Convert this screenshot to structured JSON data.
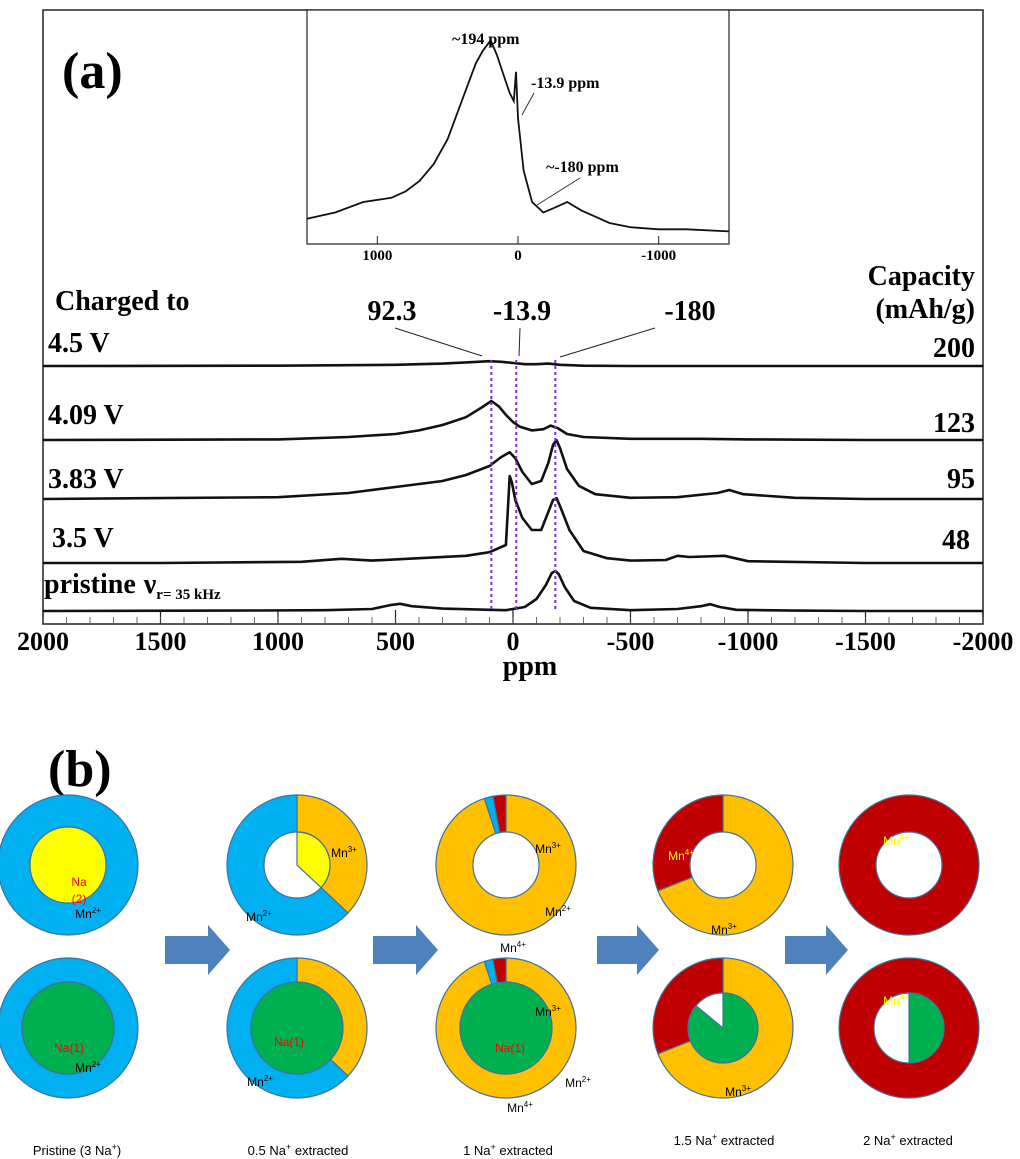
{
  "panel_a": {
    "label": "(a)",
    "charged_to_label": "Charged to",
    "capacity_label_line1": "Capacity",
    "capacity_label_line2": "(mAh/g)",
    "nu_symbol": "ν",
    "nu_subscript": "r= 35 kHz",
    "peak_labels": [
      "92.3",
      "-13.9",
      "-180"
    ],
    "peak_positions_ppm": [
      92.3,
      -13.9,
      -180
    ],
    "xlabel": "ppm"
  },
  "panel_b": {
    "label": "(b)",
    "arrow_color": "#4f81bd",
    "colors": {
      "mn2": "#00b0f0",
      "mn3": "#ffc000",
      "mn4": "#c00000",
      "na1": "#00b050",
      "na2": "#ffff00",
      "na1_text": "#ff0000",
      "mn4_label_on_red": "#ffff00"
    },
    "labels": {
      "mn2": "Mn",
      "mn2_sup": "2+",
      "mn3": "Mn",
      "mn3_sup": "3+",
      "mn4": "Mn",
      "mn4_sup": "4+",
      "na1": "Na(1)",
      "na2_line1": "Na",
      "na2_line2": "(2)"
    },
    "captions": [
      {
        "prefix": "Pristine (3 Na",
        "sup": "+",
        "suffix": ")"
      },
      {
        "prefix": "0.5 Na",
        "sup": "+",
        "suffix": " extracted"
      },
      {
        "prefix": "1 Na",
        "sup": "+",
        "suffix": " extracted"
      },
      {
        "prefix": "1.5 Na",
        "sup": "+",
        "suffix": " extracted"
      },
      {
        "prefix": "2 Na",
        "sup": "+",
        "suffix": " extracted"
      }
    ],
    "states": [
      {
        "top": {
          "mn2": 1.0,
          "mn3": 0.0,
          "mn4": 0.0,
          "inner": "na2",
          "inner_fraction": 1.0
        },
        "bottom": {
          "mn2": 1.0,
          "mn3": 0.0,
          "mn4": 0.0,
          "inner": "na1",
          "inner_fraction": 1.0
        }
      },
      {
        "top": {
          "mn2": 0.63,
          "mn3": 0.37,
          "mn4": 0.0,
          "inner": "na2",
          "inner_fraction": 0.37
        },
        "bottom": {
          "mn2": 0.63,
          "mn3": 0.37,
          "mn4": 0.0,
          "inner": "na1",
          "inner_fraction": 1.0
        }
      },
      {
        "top": {
          "mn2": 0.02,
          "mn3": 0.95,
          "mn4": 0.03,
          "inner": "none",
          "inner_fraction": 0
        },
        "bottom": {
          "mn2": 0.02,
          "mn3": 0.95,
          "mn4": 0.03,
          "inner": "na1",
          "inner_fraction": 1.0
        }
      },
      {
        "top": {
          "mn2": 0.0,
          "mn3": 0.69,
          "mn4": 0.31,
          "inner": "none",
          "inner_fraction": 0
        },
        "bottom": {
          "mn2": 0.0,
          "mn3": 0.69,
          "mn4": 0.31,
          "inner": "na1",
          "inner_fraction": 0.86
        }
      },
      {
        "top": {
          "mn2": 0.0,
          "mn3": 0.0,
          "mn4": 1.0,
          "inner": "none",
          "inner_fraction": 0
        },
        "bottom": {
          "mn2": 0.0,
          "mn3": 0.0,
          "mn4": 1.0,
          "inner": "na1",
          "inner_fraction": 0.5
        }
      }
    ]
  },
  "chart_data": [
    {
      "type": "line",
      "title": "",
      "xlabel": "ppm",
      "ylabel": "",
      "xlim": [
        2000,
        -2000
      ],
      "x_reversed": true,
      "xticks": [
        2000,
        1500,
        1000,
        500,
        0,
        -500,
        -1000,
        -1500,
        -2000
      ],
      "series": [
        {
          "name": "4.5 V",
          "capacity": "200",
          "x": [
            2000,
            1000,
            500,
            300,
            200,
            150,
            100,
            50,
            0,
            -50,
            -100,
            -150,
            -200,
            -300,
            -500,
            -1000,
            -1500,
            -2000
          ],
          "y": [
            0,
            0.005,
            0.02,
            0.04,
            0.06,
            0.07,
            0.08,
            0.07,
            0.05,
            0.03,
            0.03,
            0.04,
            0.02,
            0.005,
            0,
            0,
            0,
            0
          ]
        },
        {
          "name": "4.09 V",
          "capacity": "123",
          "x": [
            2000,
            1000,
            700,
            500,
            400,
            300,
            200,
            130,
            92,
            60,
            30,
            0,
            -30,
            -80,
            -130,
            -160,
            -190,
            -230,
            -300,
            -500,
            -800,
            -1000,
            -1500,
            -2000
          ],
          "y": [
            0,
            0.01,
            0.05,
            0.1,
            0.16,
            0.25,
            0.38,
            0.55,
            0.65,
            0.56,
            0.42,
            0.3,
            0.22,
            0.16,
            0.18,
            0.24,
            0.2,
            0.1,
            0.05,
            0.02,
            0.02,
            0.01,
            0,
            0
          ]
        },
        {
          "name": "3.83 V",
          "capacity": "95",
          "x": [
            2000,
            1000,
            700,
            500,
            300,
            200,
            100,
            50,
            14,
            -10,
            -40,
            -80,
            -120,
            -150,
            -170,
            -185,
            -200,
            -230,
            -280,
            -350,
            -500,
            -700,
            -870,
            -920,
            -980,
            -1200,
            -1500,
            -2000
          ],
          "y": [
            0,
            0.03,
            0.1,
            0.2,
            0.3,
            0.4,
            0.55,
            0.7,
            0.78,
            0.68,
            0.45,
            0.25,
            0.3,
            0.6,
            0.9,
            0.98,
            0.85,
            0.5,
            0.22,
            0.08,
            0.02,
            0.03,
            0.1,
            0.15,
            0.08,
            0.02,
            0,
            0
          ]
        },
        {
          "name": "3.5 V",
          "capacity": "48",
          "x": [
            2000,
            1500,
            900,
            730,
            600,
            400,
            200,
            100,
            30,
            14,
            5,
            -10,
            -40,
            -80,
            -120,
            -150,
            -170,
            -185,
            -200,
            -240,
            -300,
            -400,
            -500,
            -650,
            -700,
            -750,
            -900,
            -1000,
            -1500,
            -2000
          ],
          "y": [
            0,
            0,
            0.02,
            0.07,
            0.04,
            0.08,
            0.12,
            0.18,
            0.3,
            1.45,
            1.35,
            1.05,
            0.75,
            0.55,
            0.55,
            0.85,
            1.05,
            1.08,
            0.95,
            0.55,
            0.2,
            0.08,
            0.04,
            0.05,
            0.12,
            0.1,
            0.12,
            0.03,
            0,
            0
          ]
        },
        {
          "name": "pristine",
          "capacity": "",
          "x": [
            2000,
            1200,
            800,
            600,
            520,
            480,
            430,
            300,
            100,
            30,
            -50,
            -100,
            -140,
            -165,
            -180,
            -195,
            -220,
            -260,
            -330,
            -500,
            -700,
            -800,
            -840,
            -880,
            -950,
            -1200,
            -1500,
            -2000
          ],
          "y": [
            0,
            0.01,
            0.02,
            0.05,
            0.15,
            0.18,
            0.12,
            0.06,
            0.03,
            0.02,
            0.1,
            0.3,
            0.65,
            0.95,
            1.0,
            0.92,
            0.6,
            0.25,
            0.08,
            0.02,
            0.05,
            0.12,
            0.17,
            0.1,
            0.03,
            0.01,
            0,
            0
          ]
        }
      ]
    },
    {
      "type": "line",
      "title": "",
      "xlabel": "",
      "ylabel": "",
      "xlim": [
        1500,
        -1500
      ],
      "x_reversed": true,
      "xticks": [
        1000,
        0,
        -1000
      ],
      "annotations": [
        "~194 ppm",
        "-13.9 ppm",
        "~-180 ppm"
      ],
      "series": [
        {
          "name": "",
          "x": [
            1500,
            1300,
            1100,
            900,
            800,
            700,
            600,
            500,
            400,
            300,
            250,
            194,
            150,
            100,
            60,
            30,
            14,
            0,
            -40,
            -100,
            -180,
            -250,
            -350,
            -450,
            -550,
            -650,
            -800,
            -1000,
            -1200,
            -1500
          ],
          "y": [
            0.12,
            0.15,
            0.2,
            0.22,
            0.25,
            0.3,
            0.38,
            0.5,
            0.68,
            0.86,
            0.92,
            0.97,
            0.9,
            0.8,
            0.72,
            0.68,
            0.82,
            0.6,
            0.35,
            0.2,
            0.15,
            0.17,
            0.2,
            0.16,
            0.13,
            0.1,
            0.08,
            0.07,
            0.07,
            0.06
          ]
        }
      ]
    }
  ]
}
